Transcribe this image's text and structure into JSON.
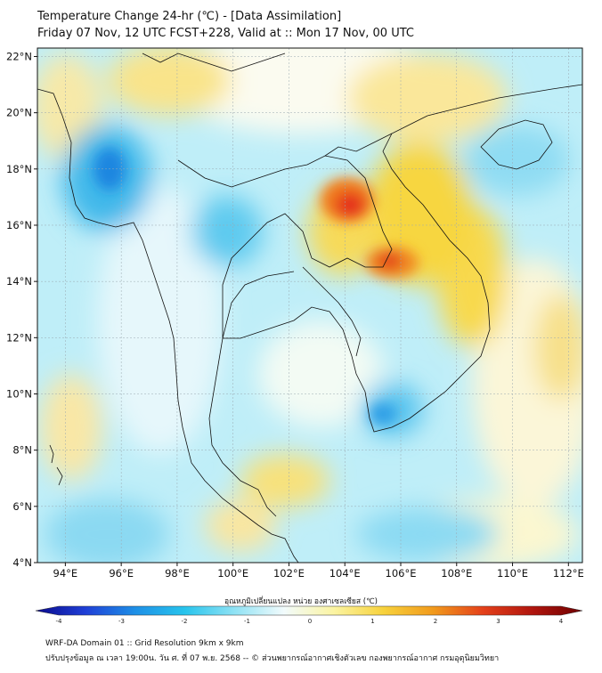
{
  "header": {
    "title_line1": "Temperature Change 24-hr (℃) - [Data Assimilation]",
    "title_line2": "Friday 07 Nov, 12 UTC FCST+228, Valid at :: Mon 17 Nov, 00 UTC"
  },
  "map": {
    "lon_range": [
      93,
      112.5
    ],
    "lat_range": [
      4,
      22.3
    ],
    "lon_ticks": [
      {
        "value": 94,
        "label": "94°E"
      },
      {
        "value": 96,
        "label": "96°E"
      },
      {
        "value": 98,
        "label": "98°E"
      },
      {
        "value": 100,
        "label": "100°E"
      },
      {
        "value": 102,
        "label": "102°E"
      },
      {
        "value": 104,
        "label": "104°E"
      },
      {
        "value": 106,
        "label": "106°E"
      },
      {
        "value": 108,
        "label": "108°E"
      },
      {
        "value": 110,
        "label": "110°E"
      },
      {
        "value": 112,
        "label": "112°E"
      }
    ],
    "lat_ticks": [
      {
        "value": 4,
        "label": "4°N"
      },
      {
        "value": 6,
        "label": "6°N"
      },
      {
        "value": 8,
        "label": "8°N"
      },
      {
        "value": 10,
        "label": "10°N"
      },
      {
        "value": 12,
        "label": "12°N"
      },
      {
        "value": 14,
        "label": "14°N"
      },
      {
        "value": 16,
        "label": "16°N"
      },
      {
        "value": 18,
        "label": "18°N"
      },
      {
        "value": 20,
        "label": "20°N"
      },
      {
        "value": 22,
        "label": "22°N"
      }
    ]
  },
  "colorbar": {
    "title": "อุณหภูมิเปลี่ยนแปลง หน่วย องศาเซลเซียส (℃)",
    "min": -4,
    "max": 4,
    "tick_values": [
      -4,
      -3,
      -2,
      -1,
      0,
      1,
      2,
      3,
      4
    ],
    "tick_labels": [
      "-4",
      "-3",
      "-2",
      "-1",
      "0",
      "1",
      "2",
      "3",
      "4"
    ],
    "colors": [
      "#0a0a8c",
      "#1f3fd6",
      "#1e8fe6",
      "#27c4ec",
      "#8fe2f4",
      "#f2fbfc",
      "#fbf4a2",
      "#f7d23c",
      "#f19a1c",
      "#e4401a",
      "#b0150e",
      "#6e0000"
    ]
  },
  "footer": {
    "line1": "WRF-DA Domain 01 :: Grid Resolution 9km x 9km",
    "line2": "ปรับปรุงข้อมูล ณ เวลา 19:00น. วัน ศ. ที่ 07 พ.ย. 2568 -- © ส่วนพยากรณ์อากาศเชิงตัวเลข กองพยากรณ์อากาศ กรมอุตุนิยมวิทยา"
  }
}
